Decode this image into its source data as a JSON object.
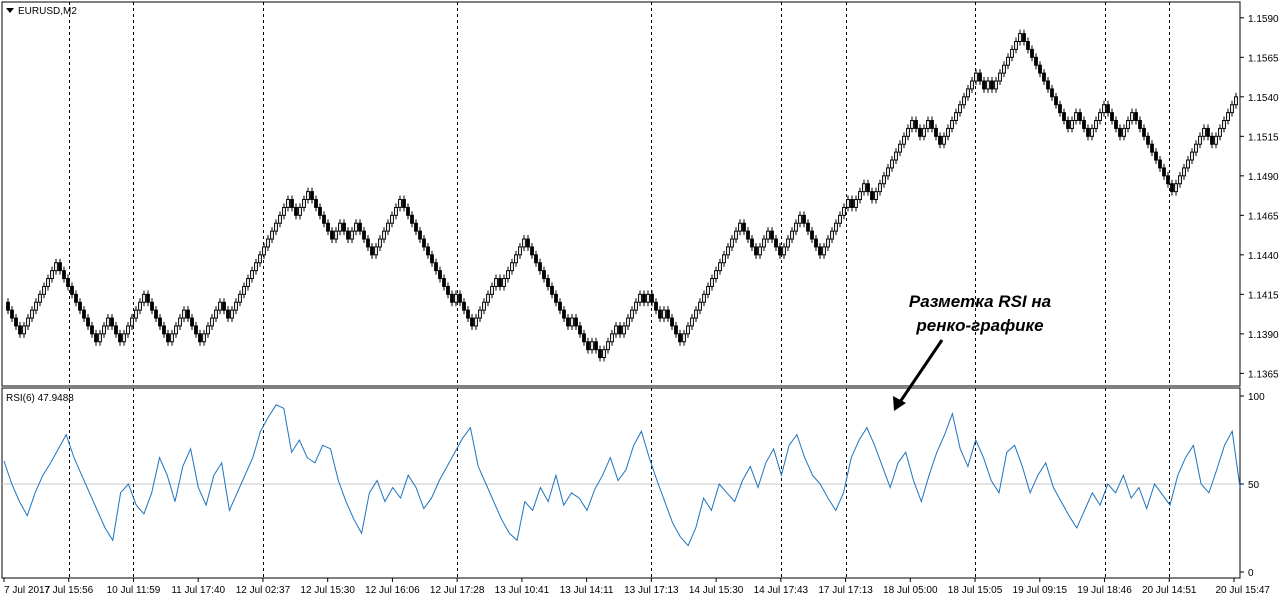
{
  "chart_data": [
    {
      "type": "renko",
      "title": "EURUSD,M2",
      "brick_color_up": "#ffffff",
      "brick_color_down": "#000000",
      "ylim": [
        1.1357,
        1.16
      ],
      "y_ticks": [
        "1.1590",
        "1.1565",
        "1.1540",
        "1.1515",
        "1.1490",
        "1.1465",
        "1.1440",
        "1.1415",
        "1.1390",
        "1.1365"
      ],
      "brick_size": 0.0005,
      "brick_path": [
        1.141,
        1.1405,
        1.14,
        1.1395,
        1.139,
        1.1395,
        1.14,
        1.1405,
        1.141,
        1.1415,
        1.142,
        1.1425,
        1.143,
        1.1435,
        1.143,
        1.1425,
        1.142,
        1.1415,
        1.141,
        1.1405,
        1.14,
        1.1395,
        1.139,
        1.1385,
        1.139,
        1.1395,
        1.14,
        1.1395,
        1.139,
        1.1385,
        1.139,
        1.1395,
        1.14,
        1.1405,
        1.141,
        1.1415,
        1.141,
        1.1405,
        1.14,
        1.1395,
        1.139,
        1.1385,
        1.139,
        1.1395,
        1.14,
        1.1405,
        1.14,
        1.1395,
        1.139,
        1.1385,
        1.139,
        1.1395,
        1.14,
        1.1405,
        1.141,
        1.1405,
        1.14,
        1.1405,
        1.141,
        1.1415,
        1.142,
        1.1425,
        1.143,
        1.1435,
        1.144,
        1.1445,
        1.145,
        1.1455,
        1.146,
        1.1465,
        1.147,
        1.1475,
        1.147,
        1.1465,
        1.147,
        1.1475,
        1.148,
        1.1475,
        1.147,
        1.1465,
        1.146,
        1.1455,
        1.145,
        1.1455,
        1.146,
        1.1455,
        1.145,
        1.1455,
        1.146,
        1.1455,
        1.145,
        1.1445,
        1.144,
        1.1445,
        1.145,
        1.1455,
        1.146,
        1.1465,
        1.147,
        1.1475,
        1.147,
        1.1465,
        1.146,
        1.1455,
        1.145,
        1.1445,
        1.144,
        1.1435,
        1.143,
        1.1425,
        1.142,
        1.1415,
        1.141,
        1.1415,
        1.141,
        1.1405,
        1.14,
        1.1395,
        1.14,
        1.1405,
        1.141,
        1.1415,
        1.142,
        1.1425,
        1.142,
        1.1425,
        1.143,
        1.1435,
        1.144,
        1.1445,
        1.145,
        1.1445,
        1.144,
        1.1435,
        1.143,
        1.1425,
        1.142,
        1.1415,
        1.141,
        1.1405,
        1.14,
        1.1395,
        1.14,
        1.1395,
        1.139,
        1.1385,
        1.138,
        1.1385,
        1.138,
        1.1375,
        1.138,
        1.1385,
        1.139,
        1.1395,
        1.139,
        1.1395,
        1.14,
        1.1405,
        1.141,
        1.1415,
        1.141,
        1.1415,
        1.141,
        1.1405,
        1.14,
        1.1405,
        1.14,
        1.1395,
        1.139,
        1.1385,
        1.139,
        1.1395,
        1.14,
        1.1405,
        1.141,
        1.1415,
        1.142,
        1.1425,
        1.143,
        1.1435,
        1.144,
        1.1445,
        1.145,
        1.1455,
        1.146,
        1.1455,
        1.145,
        1.1445,
        1.144,
        1.1445,
        1.145,
        1.1455,
        1.145,
        1.1445,
        1.144,
        1.1445,
        1.145,
        1.1455,
        1.146,
        1.1465,
        1.146,
        1.1455,
        1.145,
        1.1445,
        1.144,
        1.1445,
        1.145,
        1.1455,
        1.146,
        1.1465,
        1.147,
        1.1475,
        1.147,
        1.1475,
        1.148,
        1.1485,
        1.148,
        1.1475,
        1.148,
        1.1485,
        1.149,
        1.1495,
        1.15,
        1.1505,
        1.151,
        1.1515,
        1.152,
        1.1525,
        1.152,
        1.1515,
        1.152,
        1.1525,
        1.152,
        1.1515,
        1.151,
        1.1515,
        1.152,
        1.1525,
        1.153,
        1.1535,
        1.154,
        1.1545,
        1.155,
        1.1555,
        1.155,
        1.1545,
        1.155,
        1.1545,
        1.155,
        1.1555,
        1.156,
        1.1565,
        1.157,
        1.1575,
        1.158,
        1.1575,
        1.157,
        1.1565,
        1.156,
        1.1555,
        1.155,
        1.1545,
        1.154,
        1.1535,
        1.153,
        1.1525,
        1.152,
        1.1525,
        1.153,
        1.1525,
        1.152,
        1.1515,
        1.152,
        1.1525,
        1.153,
        1.1535,
        1.153,
        1.1525,
        1.152,
        1.1515,
        1.152,
        1.1525,
        1.153,
        1.1525,
        1.152,
        1.1515,
        1.151,
        1.1505,
        1.15,
        1.1495,
        1.149,
        1.1485,
        1.148,
        1.1485,
        1.149,
        1.1495,
        1.15,
        1.1505,
        1.151,
        1.1515,
        1.152,
        1.1515,
        1.151,
        1.1515,
        1.152,
        1.1525,
        1.153,
        1.1535,
        1.154
      ]
    },
    {
      "type": "line",
      "title": "RSI(6) 47.9488",
      "series": [
        {
          "name": "RSI(6)",
          "color": "#1e73be",
          "values": [
            63,
            50,
            40,
            32,
            45,
            55,
            62,
            70,
            78,
            65,
            55,
            45,
            35,
            25,
            18,
            45,
            50,
            38,
            33,
            45,
            65,
            55,
            40,
            60,
            70,
            48,
            38,
            55,
            62,
            35,
            45,
            55,
            65,
            80,
            88,
            95,
            93,
            68,
            75,
            65,
            62,
            72,
            70,
            52,
            40,
            30,
            22,
            45,
            52,
            40,
            48,
            42,
            55,
            48,
            36,
            42,
            52,
            60,
            68,
            76,
            82,
            60,
            50,
            40,
            30,
            22,
            18,
            40,
            35,
            48,
            40,
            55,
            38,
            45,
            42,
            35,
            47,
            55,
            65,
            52,
            58,
            72,
            80,
            65,
            52,
            40,
            28,
            20,
            15,
            25,
            42,
            35,
            50,
            45,
            40,
            52,
            60,
            48,
            62,
            70,
            55,
            72,
            78,
            65,
            55,
            50,
            42,
            35,
            45,
            65,
            75,
            82,
            72,
            60,
            48,
            62,
            68,
            52,
            40,
            55,
            68,
            78,
            90,
            70,
            60,
            75,
            65,
            52,
            45,
            68,
            72,
            60,
            45,
            55,
            62,
            48,
            40,
            32,
            25,
            35,
            45,
            38,
            50,
            45,
            55,
            42,
            48,
            36,
            50,
            44,
            38,
            55,
            65,
            72,
            50,
            45,
            58,
            72,
            80,
            48
          ]
        }
      ],
      "ylim": [
        0,
        100
      ],
      "y_ticks": [
        "100",
        "50",
        "0"
      ]
    }
  ],
  "x_tick_labels": [
    "7 Jul 2017",
    "7 Jul 15:56",
    "10 Jul 11:59",
    "11 Jul 17:40",
    "12 Jul 02:37",
    "12 Jul 15:30",
    "12 Jul 16:06",
    "12 Jul 17:28",
    "13 Jul 10:41",
    "13 Jul 14:11",
    "13 Jul 17:13",
    "14 Jul 15:30",
    "14 Jul 17:43",
    "17 Jul 17:13",
    "18 Jul 05:00",
    "18 Jul 15:05",
    "19 Jul 09:15",
    "19 Jul 18:46",
    "20 Jul 14:51",
    "20 Jul 15:47"
  ],
  "annotation": {
    "line1": "Разметка RSI на",
    "line2": "ренко-графике"
  }
}
